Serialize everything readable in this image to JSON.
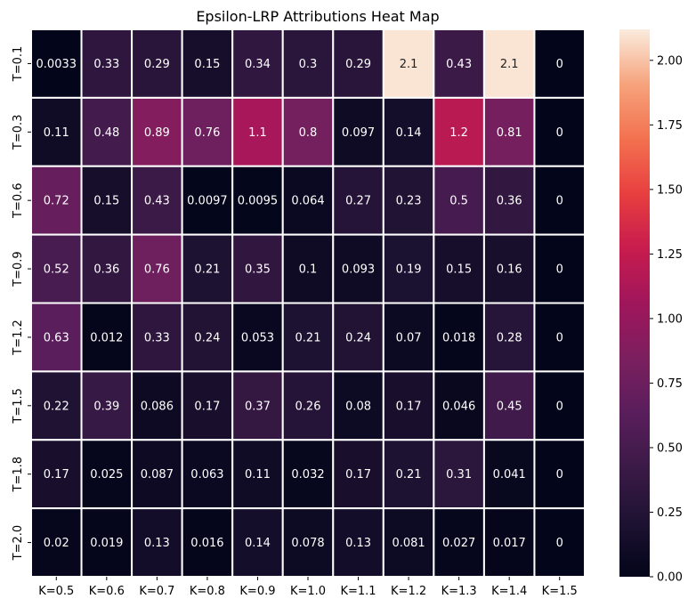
{
  "chart_data": {
    "type": "heatmap",
    "title": "Epsilon-LRP Attributions Heat Map",
    "x_labels": [
      "K=0.5",
      "K=0.6",
      "K=0.7",
      "K=0.8",
      "K=0.9",
      "K=1.0",
      "K=1.1",
      "K=1.2",
      "K=1.3",
      "K=1.4",
      "K=1.5"
    ],
    "y_labels": [
      "T=0.1",
      "T=0.3",
      "T=0.6",
      "T=0.9",
      "T=1.2",
      "T=1.5",
      "T=1.8",
      "T=2.0"
    ],
    "values": [
      [
        0.0033,
        0.33,
        0.29,
        0.15,
        0.34,
        0.3,
        0.29,
        2.1,
        0.43,
        2.1,
        0
      ],
      [
        0.11,
        0.48,
        0.89,
        0.76,
        1.1,
        0.8,
        0.097,
        0.14,
        1.2,
        0.81,
        0
      ],
      [
        0.72,
        0.15,
        0.43,
        0.0097,
        0.0095,
        0.064,
        0.27,
        0.23,
        0.5,
        0.36,
        0
      ],
      [
        0.52,
        0.36,
        0.76,
        0.21,
        0.35,
        0.1,
        0.093,
        0.19,
        0.15,
        0.16,
        0
      ],
      [
        0.63,
        0.012,
        0.33,
        0.24,
        0.053,
        0.21,
        0.24,
        0.07,
        0.018,
        0.28,
        0
      ],
      [
        0.22,
        0.39,
        0.086,
        0.17,
        0.37,
        0.26,
        0.08,
        0.17,
        0.046,
        0.45,
        0
      ],
      [
        0.17,
        0.025,
        0.087,
        0.063,
        0.11,
        0.032,
        0.17,
        0.21,
        0.31,
        0.041,
        0
      ],
      [
        0.02,
        0.019,
        0.13,
        0.016,
        0.14,
        0.078,
        0.13,
        0.081,
        0.027,
        0.017,
        0
      ]
    ],
    "cell_labels": [
      [
        "0.0033",
        "0.33",
        "0.29",
        "0.15",
        "0.34",
        "0.3",
        "0.29",
        "2.1",
        "0.43",
        "2.1",
        "0"
      ],
      [
        "0.11",
        "0.48",
        "0.89",
        "0.76",
        "1.1",
        "0.8",
        "0.097",
        "0.14",
        "1.2",
        "0.81",
        "0"
      ],
      [
        "0.72",
        "0.15",
        "0.43",
        "0.0097",
        "0.0095",
        "0.064",
        "0.27",
        "0.23",
        "0.5",
        "0.36",
        "0"
      ],
      [
        "0.52",
        "0.36",
        "0.76",
        "0.21",
        "0.35",
        "0.1",
        "0.093",
        "0.19",
        "0.15",
        "0.16",
        "0"
      ],
      [
        "0.63",
        "0.012",
        "0.33",
        "0.24",
        "0.053",
        "0.21",
        "0.24",
        "0.07",
        "0.018",
        "0.28",
        "0"
      ],
      [
        "0.22",
        "0.39",
        "0.086",
        "0.17",
        "0.37",
        "0.26",
        "0.08",
        "0.17",
        "0.046",
        "0.45",
        "0"
      ],
      [
        "0.17",
        "0.025",
        "0.087",
        "0.063",
        "0.11",
        "0.032",
        "0.17",
        "0.21",
        "0.31",
        "0.041",
        "0"
      ],
      [
        "0.02",
        "0.019",
        "0.13",
        "0.016",
        "0.14",
        "0.078",
        "0.13",
        "0.081",
        "0.027",
        "0.017",
        "0"
      ]
    ],
    "colorbar": {
      "min": 0,
      "max": 2.12,
      "ticks": [
        0.0,
        0.25,
        0.5,
        0.75,
        1.0,
        1.25,
        1.5,
        1.75,
        2.0
      ],
      "tick_labels": [
        "0.00",
        "0.25",
        "0.50",
        "0.75",
        "1.00",
        "1.25",
        "1.50",
        "1.75",
        "2.00"
      ]
    },
    "colormap": "rocket",
    "xlabel": "",
    "ylabel": ""
  }
}
